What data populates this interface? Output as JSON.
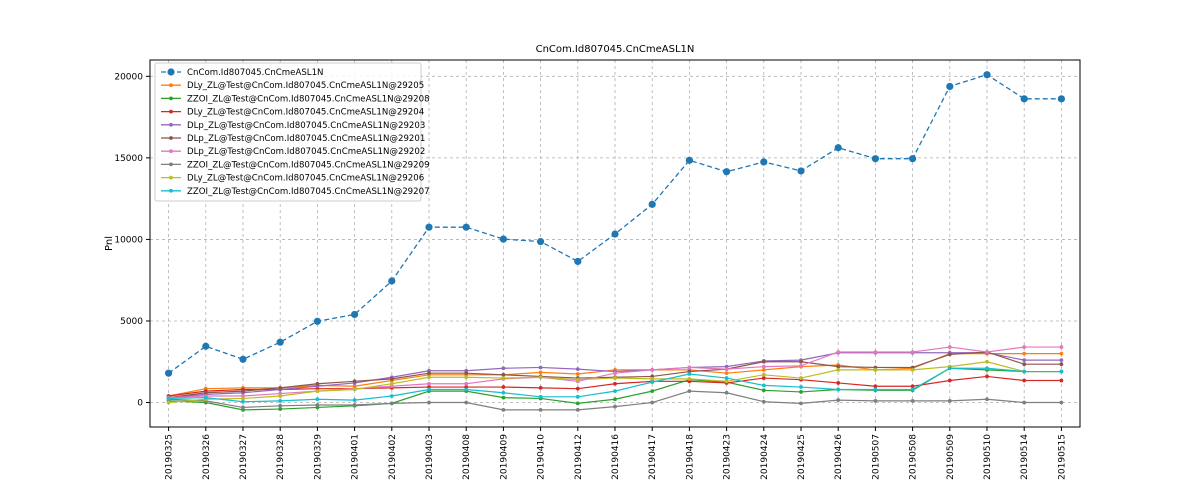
{
  "chart_data": {
    "type": "line",
    "title": "CnCom.Id807045.CnCmeASL1N",
    "xlabel": "",
    "ylabel": "Pnl",
    "ylim": [
      -1500,
      21000
    ],
    "yticks": [
      0,
      5000,
      10000,
      15000,
      20000
    ],
    "grid": true,
    "legend_position": "top-left",
    "categories": [
      "20190325",
      "20190326",
      "20190327",
      "20190328",
      "20190329",
      "20190401",
      "20190402",
      "20190403",
      "20190408",
      "20190409",
      "20190410",
      "20190412",
      "20190416",
      "20190417",
      "20190418",
      "20190423",
      "20190424",
      "20190425",
      "20190426",
      "20190507",
      "20190508",
      "20190509",
      "20190510",
      "20190514",
      "20190515"
    ],
    "series": [
      {
        "name": "CnCom.Id807045.CnCmeASL1N",
        "color": "#1f77b4",
        "style": "dashed-large-marker",
        "values": [
          1800,
          3450,
          2650,
          3700,
          4980,
          5400,
          7450,
          10750,
          10750,
          10020,
          9870,
          8650,
          10330,
          12150,
          14850,
          14150,
          14750,
          14200,
          15620,
          14950,
          14950,
          19380,
          20100,
          18620,
          18620
        ]
      },
      {
        "name": "DLy_ZL@Test@CnCom.Id807045.CnCmeASL1N@29205",
        "color": "#ff7f0e",
        "style": "solid",
        "values": [
          400,
          850,
          900,
          900,
          1050,
          1000,
          1350,
          1700,
          1700,
          1700,
          1850,
          1750,
          2000,
          2000,
          2000,
          1800,
          2000,
          2200,
          2300,
          2000,
          2100,
          3000,
          3000,
          3000,
          3000
        ]
      },
      {
        "name": "ZZOI_ZL@Test@CnCom.Id807045.CnCmeASL1N@29208",
        "color": "#2ca02c",
        "style": "solid",
        "values": [
          100,
          0,
          -450,
          -400,
          -300,
          -200,
          -50,
          700,
          700,
          300,
          250,
          -50,
          200,
          700,
          1400,
          1250,
          750,
          650,
          800,
          750,
          750,
          2100,
          2000,
          1900,
          1900
        ]
      },
      {
        "name": "DLy_ZL@Test@CnCom.Id807045.CnCmeASL1N@29204",
        "color": "#d62728",
        "style": "solid",
        "values": [
          400,
          700,
          800,
          800,
          850,
          850,
          900,
          950,
          950,
          950,
          900,
          850,
          1150,
          1300,
          1300,
          1200,
          1500,
          1400,
          1200,
          1000,
          1000,
          1350,
          1600,
          1350,
          1350
        ]
      },
      {
        "name": "DLp_ZL@Test@CnCom.Id807045.CnCmeASL1N@29203",
        "color": "#9467bd",
        "style": "solid",
        "values": [
          300,
          500,
          600,
          800,
          1000,
          1200,
          1550,
          1950,
          1950,
          2100,
          2150,
          2050,
          1900,
          2000,
          2150,
          2200,
          2550,
          2600,
          3050,
          3050,
          3050,
          3050,
          3050,
          2600,
          2600
        ]
      },
      {
        "name": "DLp_ZL@Test@CnCom.Id807045.CnCmeASL1N@29201",
        "color": "#8c564b",
        "style": "solid",
        "values": [
          300,
          600,
          700,
          900,
          1150,
          1300,
          1450,
          1800,
          1800,
          1700,
          1600,
          1500,
          1550,
          1600,
          1900,
          2050,
          2500,
          2500,
          2200,
          2150,
          2150,
          2950,
          3100,
          2350,
          2350
        ]
      },
      {
        "name": "DLp_ZL@Test@CnCom.Id807045.CnCmeASL1N@29202",
        "color": "#e377c2",
        "style": "solid",
        "values": [
          300,
          400,
          400,
          550,
          700,
          850,
          1000,
          1150,
          1150,
          1450,
          1550,
          1300,
          1800,
          2000,
          2150,
          2050,
          2200,
          2250,
          3100,
          3100,
          3100,
          3400,
          3100,
          3400,
          3400
        ]
      },
      {
        "name": "ZZOI_ZL@Test@CnCom.Id807045.CnCmeASL1N@29209",
        "color": "#7f7f7f",
        "style": "solid",
        "values": [
          200,
          100,
          -300,
          -200,
          -150,
          -150,
          -50,
          0,
          0,
          -450,
          -450,
          -450,
          -250,
          0,
          700,
          600,
          50,
          -50,
          150,
          100,
          100,
          100,
          200,
          0,
          0
        ]
      },
      {
        "name": "DLy_ZL@Test@CnCom.Id807045.CnCmeASL1N@29206",
        "color": "#bcbd22",
        "style": "solid",
        "values": [
          0,
          200,
          250,
          400,
          700,
          800,
          1150,
          1550,
          1550,
          1500,
          1550,
          1400,
          1500,
          1450,
          1450,
          1300,
          1700,
          1500,
          2000,
          2000,
          2000,
          2200,
          2500,
          1900,
          1900
        ]
      },
      {
        "name": "ZZOI_ZL@Test@CnCom.Id807045.CnCmeASL1N@29207",
        "color": "#17becf",
        "style": "solid",
        "values": [
          250,
          300,
          50,
          100,
          200,
          150,
          400,
          800,
          800,
          600,
          350,
          350,
          700,
          1250,
          1750,
          1500,
          1050,
          950,
          800,
          800,
          800,
          2100,
          2100,
          1900,
          1900
        ]
      }
    ]
  }
}
